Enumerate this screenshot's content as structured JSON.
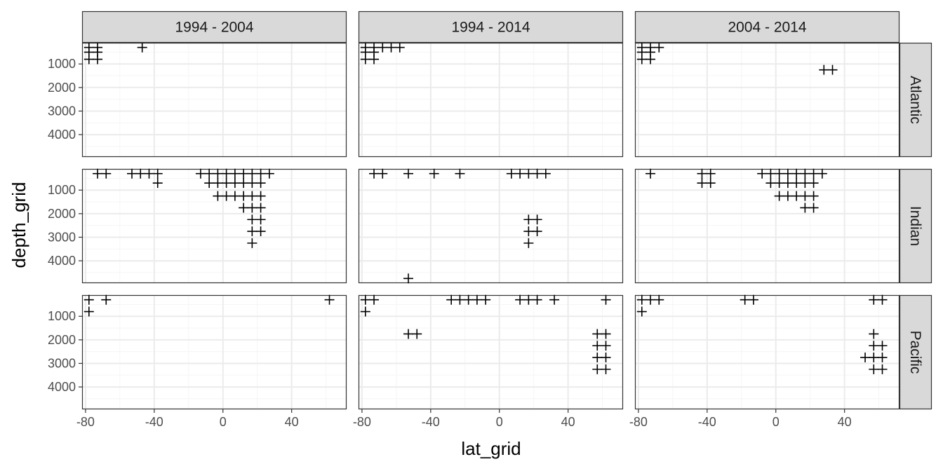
{
  "chart_data": {
    "type": "scatter",
    "title": "",
    "xlabel": "lat_grid",
    "ylabel": "depth_grid",
    "marker": "plus",
    "y_reversed": true,
    "xlim": [
      -82,
      72
    ],
    "ylim": [
      100,
      4950
    ],
    "x_ticks": [
      -80,
      -40,
      0,
      40
    ],
    "y_ticks": [
      1000,
      2000,
      3000,
      4000
    ],
    "x_tick_labels": [
      "-80",
      "-40",
      "0",
      "40"
    ],
    "y_tick_labels": [
      "1000",
      "2000",
      "3000",
      "4000"
    ],
    "grid": true,
    "colors": {
      "panel_border": "#333333",
      "strip_fill": "#d9d9d9",
      "grid_major": "#ebebeb",
      "grid_minor": "#f5f5f5",
      "point": "#000000"
    },
    "columns": [
      "1994 - 2004",
      "1994 - 2014",
      "2004 - 2014"
    ],
    "rows": [
      "Atlantic",
      "Indian",
      "Pacific"
    ],
    "panels": [
      {
        "column": "1994 - 2004",
        "row": "Atlantic",
        "points": [
          [
            -78,
            300
          ],
          [
            -73,
            300
          ],
          [
            -47,
            300
          ],
          [
            -78,
            500
          ],
          [
            -73,
            500
          ],
          [
            -78,
            800
          ],
          [
            -73,
            800
          ]
        ]
      },
      {
        "column": "1994 - 2014",
        "row": "Atlantic",
        "points": [
          [
            -78,
            300
          ],
          [
            -73,
            300
          ],
          [
            -68,
            300
          ],
          [
            -63,
            300
          ],
          [
            -58,
            300
          ],
          [
            -78,
            500
          ],
          [
            -73,
            500
          ],
          [
            -78,
            800
          ],
          [
            -73,
            800
          ]
        ]
      },
      {
        "column": "2004 - 2014",
        "row": "Atlantic",
        "points": [
          [
            -78,
            300
          ],
          [
            -73,
            300
          ],
          [
            -68,
            300
          ],
          [
            -78,
            500
          ],
          [
            -73,
            500
          ],
          [
            -78,
            800
          ],
          [
            -73,
            800
          ],
          [
            28,
            1250
          ],
          [
            33,
            1250
          ]
        ]
      },
      {
        "column": "1994 - 2004",
        "row": "Indian",
        "points": [
          [
            -73,
            300
          ],
          [
            -68,
            300
          ],
          [
            -53,
            300
          ],
          [
            -48,
            300
          ],
          [
            -43,
            300
          ],
          [
            -38,
            300
          ],
          [
            -38,
            700
          ],
          [
            -13,
            300
          ],
          [
            -8,
            300
          ],
          [
            -3,
            300
          ],
          [
            2,
            300
          ],
          [
            7,
            300
          ],
          [
            12,
            300
          ],
          [
            17,
            300
          ],
          [
            22,
            300
          ],
          [
            27,
            300
          ],
          [
            -8,
            700
          ],
          [
            -3,
            700
          ],
          [
            2,
            700
          ],
          [
            7,
            700
          ],
          [
            12,
            700
          ],
          [
            17,
            700
          ],
          [
            22,
            700
          ],
          [
            -3,
            1250
          ],
          [
            2,
            1250
          ],
          [
            7,
            1250
          ],
          [
            12,
            1250
          ],
          [
            17,
            1250
          ],
          [
            22,
            1250
          ],
          [
            12,
            1750
          ],
          [
            17,
            1750
          ],
          [
            22,
            1750
          ],
          [
            17,
            2250
          ],
          [
            22,
            2250
          ],
          [
            17,
            2750
          ],
          [
            22,
            2750
          ],
          [
            17,
            3250
          ]
        ]
      },
      {
        "column": "1994 - 2014",
        "row": "Indian",
        "points": [
          [
            -73,
            300
          ],
          [
            -68,
            300
          ],
          [
            -53,
            300
          ],
          [
            -38,
            300
          ],
          [
            -23,
            300
          ],
          [
            7,
            300
          ],
          [
            12,
            300
          ],
          [
            17,
            300
          ],
          [
            22,
            300
          ],
          [
            27,
            300
          ],
          [
            17,
            2250
          ],
          [
            22,
            2250
          ],
          [
            17,
            2750
          ],
          [
            22,
            2750
          ],
          [
            17,
            3250
          ],
          [
            -53,
            4750
          ]
        ]
      },
      {
        "column": "2004 - 2014",
        "row": "Indian",
        "points": [
          [
            -73,
            300
          ],
          [
            -43,
            300
          ],
          [
            -38,
            300
          ],
          [
            -43,
            700
          ],
          [
            -38,
            700
          ],
          [
            -8,
            300
          ],
          [
            -3,
            300
          ],
          [
            2,
            300
          ],
          [
            7,
            300
          ],
          [
            12,
            300
          ],
          [
            17,
            300
          ],
          [
            22,
            300
          ],
          [
            27,
            300
          ],
          [
            -3,
            700
          ],
          [
            2,
            700
          ],
          [
            7,
            700
          ],
          [
            12,
            700
          ],
          [
            17,
            700
          ],
          [
            22,
            700
          ],
          [
            2,
            1250
          ],
          [
            7,
            1250
          ],
          [
            12,
            1250
          ],
          [
            17,
            1250
          ],
          [
            22,
            1250
          ],
          [
            17,
            1750
          ],
          [
            22,
            1750
          ]
        ]
      },
      {
        "column": "1994 - 2004",
        "row": "Pacific",
        "points": [
          [
            -78,
            300
          ],
          [
            -68,
            300
          ],
          [
            62,
            300
          ],
          [
            -78,
            800
          ]
        ]
      },
      {
        "column": "1994 - 2014",
        "row": "Pacific",
        "points": [
          [
            -78,
            300
          ],
          [
            -73,
            300
          ],
          [
            -28,
            300
          ],
          [
            -23,
            300
          ],
          [
            -18,
            300
          ],
          [
            -13,
            300
          ],
          [
            -8,
            300
          ],
          [
            12,
            300
          ],
          [
            17,
            300
          ],
          [
            22,
            300
          ],
          [
            32,
            300
          ],
          [
            62,
            300
          ],
          [
            -78,
            800
          ],
          [
            -53,
            1750
          ],
          [
            -48,
            1750
          ],
          [
            57,
            1750
          ],
          [
            62,
            1750
          ],
          [
            57,
            2250
          ],
          [
            62,
            2250
          ],
          [
            57,
            2750
          ],
          [
            62,
            2750
          ],
          [
            57,
            3250
          ],
          [
            62,
            3250
          ]
        ]
      },
      {
        "column": "2004 - 2014",
        "row": "Pacific",
        "points": [
          [
            -78,
            300
          ],
          [
            -73,
            300
          ],
          [
            -68,
            300
          ],
          [
            -18,
            300
          ],
          [
            -13,
            300
          ],
          [
            57,
            300
          ],
          [
            62,
            300
          ],
          [
            -78,
            800
          ],
          [
            57,
            1750
          ],
          [
            57,
            2250
          ],
          [
            62,
            2250
          ],
          [
            52,
            2750
          ],
          [
            57,
            2750
          ],
          [
            62,
            2750
          ],
          [
            57,
            3250
          ],
          [
            62,
            3250
          ]
        ]
      }
    ]
  }
}
